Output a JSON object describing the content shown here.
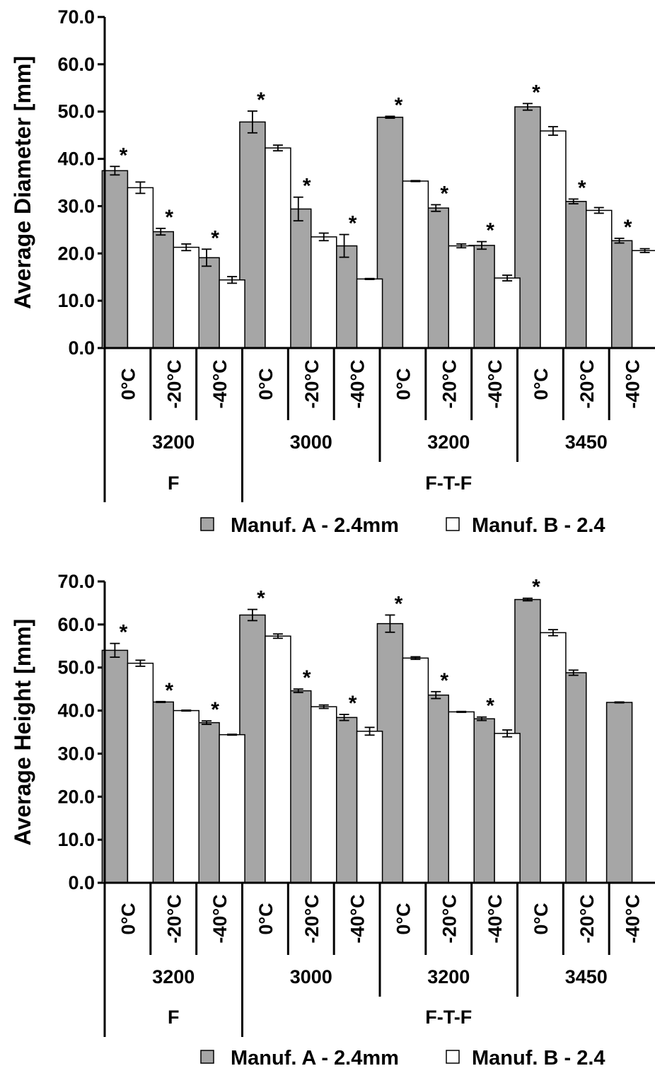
{
  "chart_data": [
    {
      "type": "bar",
      "ylabel": "Average Diameter [mm]",
      "ylim": [
        0,
        70
      ],
      "yticks": [
        "0.0",
        "10.0",
        "20.0",
        "30.0",
        "40.0",
        "50.0",
        "60.0",
        "70.0"
      ],
      "tick_values": [
        0,
        10,
        20,
        30,
        40,
        50,
        60,
        70
      ],
      "categories": [
        "0°C",
        "-20°C",
        "-40°C",
        "0°C",
        "-20°C",
        "-40°C",
        "0°C",
        "-20°C",
        "-40°C",
        "0°C",
        "-20°C",
        "-40°C"
      ],
      "level2": [
        {
          "label": "3200",
          "span": 3
        },
        {
          "label": "3000",
          "span": 3
        },
        {
          "label": "3200",
          "span": 3
        },
        {
          "label": "3450",
          "span": 3
        }
      ],
      "level3": [
        {
          "label": "F",
          "span": 3
        },
        {
          "label": "F-T-F",
          "span": 9
        }
      ],
      "series": [
        {
          "name": "Manuf. A - 2.4mm",
          "color": "#a6a6a6",
          "values": [
            37.5,
            24.6,
            19.1,
            47.8,
            29.4,
            21.6,
            48.8,
            29.6,
            21.7,
            51.0,
            31.0,
            22.7
          ],
          "errors": [
            0.9,
            0.7,
            1.8,
            2.3,
            2.5,
            2.4,
            0.2,
            0.7,
            0.8,
            0.7,
            0.5,
            0.5
          ]
        },
        {
          "name": "Manuf. B - 2.4",
          "color": "#ffffff",
          "values": [
            33.9,
            21.3,
            14.4,
            42.3,
            23.5,
            14.6,
            35.3,
            21.6,
            14.8,
            45.9,
            29.1,
            20.6
          ],
          "errors": [
            1.2,
            0.7,
            0.7,
            0.6,
            0.8,
            0.1,
            0.1,
            0.4,
            0.6,
            0.9,
            0.6,
            0.4
          ]
        }
      ],
      "significance": [
        "*",
        "*",
        "*",
        "*",
        "*",
        "*",
        "*",
        "*",
        "*",
        "*",
        "*",
        "*"
      ],
      "legend": "bottom"
    },
    {
      "type": "bar",
      "ylabel": "Average Height [mm]",
      "ylim": [
        0,
        70
      ],
      "yticks": [
        "0.0",
        "10.0",
        "20.0",
        "30.0",
        "40.0",
        "50.0",
        "60.0",
        "70.0"
      ],
      "tick_values": [
        0,
        10,
        20,
        30,
        40,
        50,
        60,
        70
      ],
      "categories": [
        "0°C",
        "-20°C",
        "-40°C",
        "0°C",
        "-20°C",
        "-40°C",
        "0°C",
        "-20°C",
        "-40°C",
        "0°C",
        "-20°C",
        "-40°C"
      ],
      "level2": [
        {
          "label": "3200",
          "span": 3
        },
        {
          "label": "3000",
          "span": 3
        },
        {
          "label": "3200",
          "span": 3
        },
        {
          "label": "3450",
          "span": 3
        }
      ],
      "level3": [
        {
          "label": "F",
          "span": 3
        },
        {
          "label": "F-T-F",
          "span": 9
        }
      ],
      "series": [
        {
          "name": "Manuf. A - 2.4mm",
          "color": "#a6a6a6",
          "values": [
            54.0,
            42.0,
            37.2,
            62.2,
            44.6,
            38.4,
            60.2,
            43.6,
            38.1,
            65.8,
            48.8,
            41.9
          ],
          "errors": [
            1.6,
            0.1,
            0.4,
            1.3,
            0.4,
            0.7,
            2.0,
            0.8,
            0.4,
            0.3,
            0.6,
            0.1
          ]
        },
        {
          "name": "Manuf. B - 2.4",
          "color": "#ffffff",
          "values": [
            51.0,
            40.0,
            34.4,
            57.3,
            40.9,
            35.2,
            52.2,
            39.7,
            34.7,
            58.1,
            null,
            null
          ],
          "errors": [
            0.7,
            0.1,
            0.1,
            0.5,
            0.4,
            0.9,
            0.3,
            0.1,
            0.8,
            0.7,
            null,
            null
          ]
        }
      ],
      "significance": [
        "*",
        "*",
        "*",
        "*",
        "*",
        "*",
        "*",
        "*",
        "*",
        "*",
        "",
        ""
      ],
      "legend": "bottom"
    }
  ]
}
